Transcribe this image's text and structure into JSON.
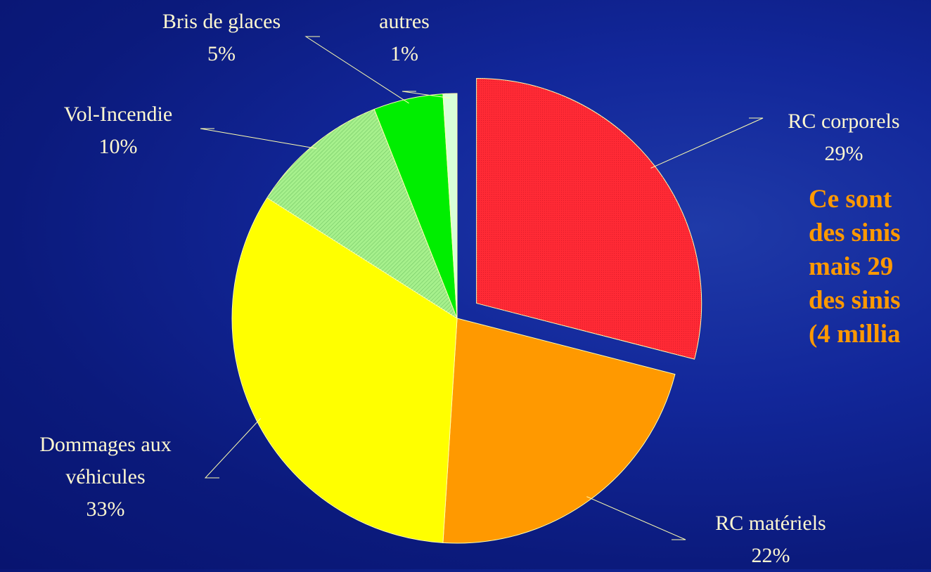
{
  "chart_data": {
    "type": "pie",
    "categories": [
      "RC corporels",
      "RC matériels",
      "Dommages aux véhicules",
      "Vol-Incendie",
      "Bris de glaces",
      "autres"
    ],
    "values": [
      29,
      22,
      33,
      10,
      5,
      1
    ],
    "value_labels": [
      "29%",
      "22%",
      "33%",
      "10%",
      "5%",
      "1%"
    ],
    "colors": [
      "#ff2a35",
      "#ff9900",
      "#ffff00",
      "#a6f08c",
      "#00ee00",
      "#d8ffd8"
    ],
    "exploded": [
      true,
      false,
      false,
      false,
      false,
      false
    ],
    "annotations": [
      "Ce sont",
      "des sinis",
      "mais 29",
      "des sinis",
      "(4 millia"
    ]
  }
}
